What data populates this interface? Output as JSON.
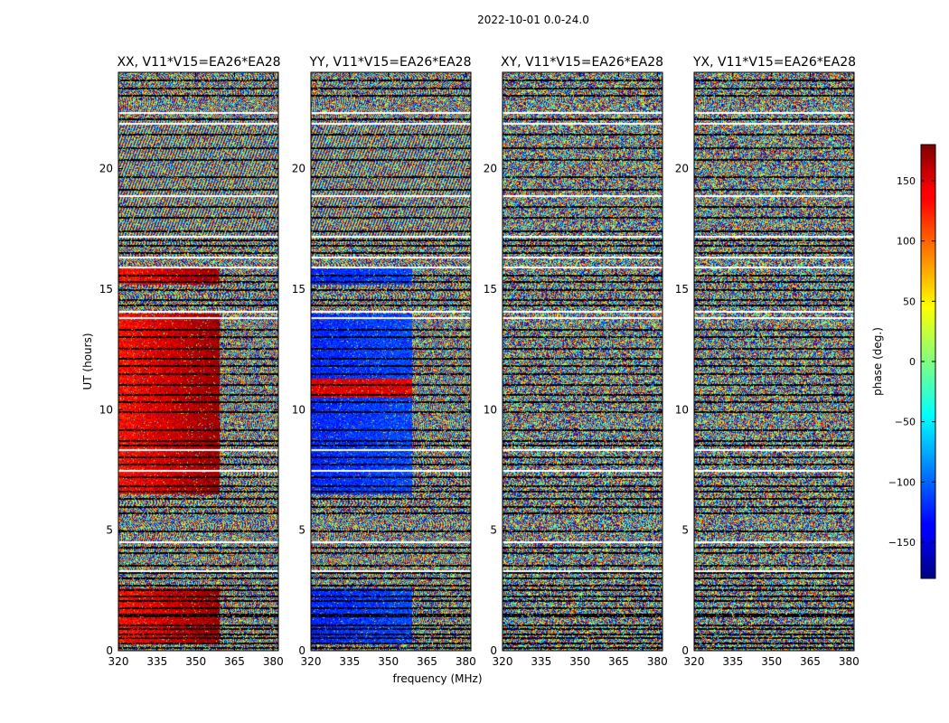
{
  "chart_data": {
    "type": "heatmap",
    "title": "2022-10-01 0.0-24.0",
    "xlabel": "frequency (MHz)",
    "ylabel": "UT (hours)",
    "xlim": [
      320,
      382
    ],
    "ylim": [
      0,
      24
    ],
    "x_ticks": [
      320,
      335,
      350,
      365,
      380
    ],
    "y_ticks": [
      0,
      5,
      10,
      15,
      20
    ],
    "panels": [
      {
        "title": "XX, V11*V15=EA26*EA28",
        "pattern": "xx"
      },
      {
        "title": "YY, V11*V15=EA26*EA28",
        "pattern": "yy"
      },
      {
        "title": "XY, V11*V15=EA26*EA28",
        "pattern": "cross"
      },
      {
        "title": "YX, V11*V15=EA26*EA28",
        "pattern": "cross"
      }
    ],
    "colorbar": {
      "label": "phase (deg.)",
      "range": [
        -180,
        180
      ],
      "ticks": [
        150,
        100,
        50,
        0,
        -50,
        -100,
        -150
      ],
      "colormap": "jet"
    },
    "flagged_rows_hours": [
      0.15,
      0.35,
      0.55,
      0.7,
      0.95,
      1.1,
      1.45,
      1.55,
      1.8,
      2.1,
      2.3,
      2.55,
      2.75,
      3.05,
      3.25,
      3.35,
      3.55,
      4.1,
      4.3,
      4.55,
      5.0,
      5.75,
      6.0,
      6.35,
      6.65,
      6.85,
      7.25,
      7.5,
      7.75,
      8.05,
      8.35,
      8.55,
      8.75,
      9.2,
      9.95,
      10.35,
      10.65,
      11.05,
      11.5,
      11.85,
      12.15,
      12.55,
      13.05,
      13.35,
      13.85,
      14.1,
      14.35,
      14.6,
      15.0,
      15.35,
      15.6,
      15.95,
      16.35,
      16.55,
      16.85,
      17.05,
      17.2,
      17.45,
      18.0,
      18.45,
      18.9,
      19.15,
      19.7,
      20.4,
      20.9,
      21.45,
      21.9,
      22.1,
      22.35,
      23.05,
      23.35,
      23.7
    ]
  }
}
